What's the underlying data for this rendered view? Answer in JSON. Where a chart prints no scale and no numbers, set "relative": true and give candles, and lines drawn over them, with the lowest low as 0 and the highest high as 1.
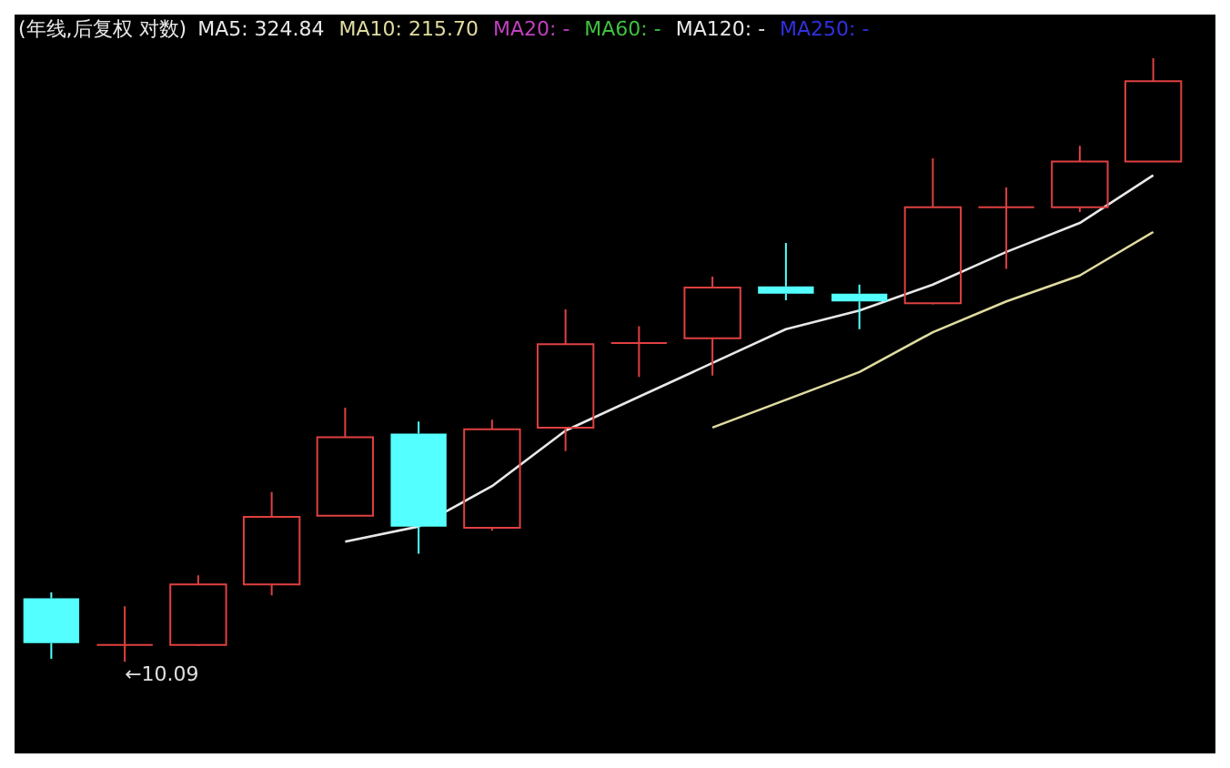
{
  "chart_data": {
    "type": "candlestick",
    "title": "(年线,后复权 对数)",
    "relative": true,
    "categories": [
      null,
      null,
      null,
      null,
      null,
      null,
      null,
      null,
      null,
      null,
      null,
      null,
      null,
      null,
      null,
      null
    ],
    "ohlc": [
      [
        0.105,
        0.115,
        0.005,
        0.031
      ],
      [
        0.028,
        0.092,
        0,
        0.028
      ],
      [
        0.028,
        0.143,
        0.026,
        0.128
      ],
      [
        0.128,
        0.281,
        0.11,
        0.24
      ],
      [
        0.242,
        0.421,
        0.242,
        0.372
      ],
      [
        0.378,
        0.398,
        0.179,
        0.224
      ],
      [
        0.222,
        0.401,
        0.217,
        0.385
      ],
      [
        0.388,
        0.584,
        0.349,
        0.526
      ],
      [
        0.528,
        0.556,
        0.472,
        0.528
      ],
      [
        0.536,
        0.638,
        0.474,
        0.62
      ],
      [
        0.622,
        0.694,
        0.599,
        0.61
      ],
      [
        0.61,
        0.625,
        0.551,
        0.597
      ],
      [
        0.594,
        0.834,
        0.592,
        0.753
      ],
      [
        0.753,
        0.786,
        0.651,
        0.753
      ],
      [
        0.753,
        0.855,
        0.745,
        0.829
      ],
      [
        0.829,
        1,
        0.829,
        0.962
      ]
    ],
    "colors": [
      "#54ffff",
      "#e04040",
      "#e04040",
      "#e04040",
      "#e04040",
      "#54ffff",
      "#e04040",
      "#e04040",
      "#e04040",
      "#e04040",
      "#54ffff",
      "#54ffff",
      "#e04040",
      "#e04040",
      "#e04040",
      "#e04040"
    ],
    "series": [
      {
        "type": "line",
        "name": "MA5: 324.84",
        "color": "#e8e8e8",
        "values": [
          null,
          null,
          null,
          null,
          0.199,
          0.224,
          0.291,
          0.383,
          0.439,
          0.495,
          0.551,
          0.582,
          0.625,
          0.679,
          0.727,
          0.806
        ]
      },
      {
        "type": "line",
        "name": "MA10: 215.70",
        "color": "#e0dca0",
        "values": [
          null,
          null,
          null,
          null,
          null,
          null,
          null,
          null,
          null,
          0.388,
          0.434,
          0.48,
          0.546,
          0.597,
          0.64,
          0.712
        ]
      },
      {
        "type": "line",
        "name": "MA20: -",
        "color": "#c040c0",
        "values": [
          null,
          null,
          null,
          null,
          null,
          null,
          null,
          null,
          null,
          null,
          null,
          null,
          null,
          null,
          null,
          null
        ]
      },
      {
        "type": "line",
        "name": "MA60: -",
        "color": "#40c040",
        "values": [
          null,
          null,
          null,
          null,
          null,
          null,
          null,
          null,
          null,
          null,
          null,
          null,
          null,
          null,
          null,
          null
        ]
      },
      {
        "type": "line",
        "name": "MA120: -",
        "color": "#e8e8e8",
        "values": [
          null,
          null,
          null,
          null,
          null,
          null,
          null,
          null,
          null,
          null,
          null,
          null,
          null,
          null,
          null,
          null
        ]
      },
      {
        "type": "line",
        "name": "MA250: -",
        "color": "#3030e0",
        "values": [
          null,
          null,
          null,
          null,
          null,
          null,
          null,
          null,
          null,
          null,
          null,
          null,
          null,
          null,
          null,
          null
        ]
      }
    ],
    "legend": "top left",
    "annotations": [
      "←10.09"
    ]
  }
}
